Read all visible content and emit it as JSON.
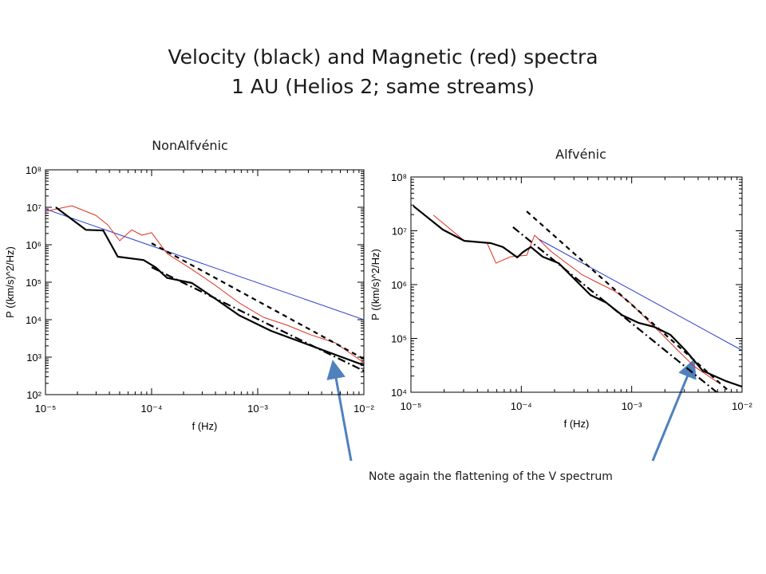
{
  "title_lines": [
    "Velocity (black) and Magnetic (red) spectra",
    "1 AU (Helios 2; same streams)"
  ],
  "annotation": "Note again the flattening of the V spectrum",
  "chart_data": [
    {
      "type": "line",
      "label": "NonAlfvénic",
      "xlabel": "f (Hz)",
      "ylabel": "P ((km/s)^2/Hz)",
      "xscale": "log",
      "yscale": "log",
      "xlim": [
        1e-05,
        0.01
      ],
      "ylim": [
        100,
        100000000
      ],
      "xticks": [
        {
          "value": 1e-05,
          "label": "10⁻⁵"
        },
        {
          "value": 0.0001,
          "label": "10⁻⁴"
        },
        {
          "value": 0.001,
          "label": "10⁻³"
        },
        {
          "value": 0.01,
          "label": "10⁻²"
        }
      ],
      "yticks": [
        {
          "value": 100,
          "label": "10²"
        },
        {
          "value": 1000,
          "label": "10³"
        },
        {
          "value": 10000,
          "label": "10⁴"
        },
        {
          "value": 100000,
          "label": "10⁵"
        },
        {
          "value": 1000000,
          "label": "10⁶"
        },
        {
          "value": 10000000,
          "label": "10⁷"
        },
        {
          "value": 100000000,
          "label": "10⁸"
        }
      ],
      "series": [
        {
          "color": "#2a3fcc",
          "dash": "solid",
          "linewidth": 1,
          "x": [
            1e-05,
            0.01
          ],
          "values": [
            9000000,
            10000
          ]
        },
        {
          "color": "#e03020",
          "dash": "solid",
          "linewidth": 1,
          "x": [
            1e-05,
            1.77e-05,
            2.98e-05,
            3.86e-05,
            5e-05,
            6.5e-05,
            8.1e-05,
            0.0001,
            0.00014,
            0.00024,
            0.0004,
            0.00067,
            0.00113,
            0.0019,
            0.00319,
            0.0054,
            0.01
          ],
          "values": [
            7800000,
            11000000,
            6100000,
            3400000,
            1280000,
            2500000,
            1800000,
            2100000,
            580000,
            220000,
            82000,
            28000,
            11600,
            7100,
            3900,
            2400,
            710
          ]
        },
        {
          "color": "#000000",
          "dash": "dashed",
          "linewidth": 2.2,
          "x": [
            0.0001,
            0.01
          ],
          "values": [
            1100000,
            900
          ]
        },
        {
          "color": "#000000",
          "dash": "dashdot",
          "linewidth": 2.2,
          "x": [
            0.0001,
            0.01
          ],
          "values": [
            250000,
            430
          ]
        },
        {
          "color": "#000000",
          "dash": "solid",
          "linewidth": 2.2,
          "x": [
            1.25e-05,
            2.4e-05,
            3.5e-05,
            4.8e-05,
            8.4e-05,
            0.000109,
            0.00014,
            0.00024,
            0.0004,
            0.00067,
            0.00134,
            0.0027,
            0.0054,
            0.01
          ],
          "values": [
            10000000,
            2500000,
            2400000,
            480000,
            390000,
            250000,
            130000,
            95000,
            36000,
            13000,
            5000,
            2400,
            1160,
            610
          ]
        }
      ]
    },
    {
      "type": "line",
      "label": "Alfvénic",
      "xlabel": "f (Hz)",
      "ylabel": "P ((km/s)^2/Hz)",
      "xscale": "log",
      "yscale": "log",
      "xlim": [
        1e-05,
        0.01
      ],
      "ylim": [
        10000,
        100000000
      ],
      "xticks": [
        {
          "value": 1e-05,
          "label": "10⁻⁵"
        },
        {
          "value": 0.0001,
          "label": "10⁻⁴"
        },
        {
          "value": 0.001,
          "label": "10⁻³"
        },
        {
          "value": 0.01,
          "label": "10⁻²"
        }
      ],
      "yticks": [
        {
          "value": 10000,
          "label": "10⁴"
        },
        {
          "value": 100000,
          "label": "10⁵"
        },
        {
          "value": 1000000,
          "label": "10⁶"
        },
        {
          "value": 10000000,
          "label": "10⁷"
        },
        {
          "value": 100000000,
          "label": "10⁸"
        }
      ],
      "series": [
        {
          "color": "#2a3fcc",
          "dash": "solid",
          "linewidth": 1,
          "x": [
            0.000144,
            0.01
          ],
          "values": [
            7000000,
            60000
          ]
        },
        {
          "color": "#e03020",
          "dash": "solid",
          "linewidth": 1,
          "x": [
            1.6e-05,
            3.05e-05,
            4.9e-05,
            5.9e-05,
            8e-05,
            0.000112,
            0.000132,
            0.000184,
            0.000257,
            0.00036,
            0.0005,
            0.0007,
            0.00097,
            0.00136,
            0.0019,
            0.00264,
            0.0037,
            0.0061
          ],
          "values": [
            19500000,
            6500000,
            5900000,
            2500000,
            3300000,
            3500000,
            8300000,
            4200000,
            2500000,
            1500000,
            1070000,
            760000,
            460000,
            230000,
            117000,
            59000,
            30000,
            15000
          ]
        },
        {
          "color": "#000000",
          "dash": "dashed",
          "linewidth": 2.2,
          "x": [
            0.000112,
            0.0078
          ],
          "values": [
            23000000,
            10000
          ]
        },
        {
          "color": "#000000",
          "dash": "dashdot",
          "linewidth": 2.2,
          "x": [
            8.4e-05,
            0.0059
          ],
          "values": [
            11700000,
            10000
          ]
        },
        {
          "color": "#000000",
          "dash": "solid",
          "linewidth": 2.2,
          "x": [
            1.05e-05,
            1.95e-05,
            3.05e-05,
            5.3e-05,
            6.8e-05,
            9.2e-05,
            0.000103,
            0.000122,
            0.000156,
            0.000218,
            0.000303,
            0.000424,
            0.00059,
            0.00082,
            0.00115,
            0.0016,
            0.00224,
            0.0031,
            0.0044,
            0.0072,
            0.01
          ],
          "values": [
            29000000,
            10500000,
            6500000,
            5900000,
            5000000,
            3200000,
            4000000,
            5000000,
            3300000,
            2500000,
            1270000,
            640000,
            460000,
            270000,
            195000,
            164000,
            117000,
            59000,
            25000,
            16000,
            12700
          ]
        }
      ]
    }
  ]
}
